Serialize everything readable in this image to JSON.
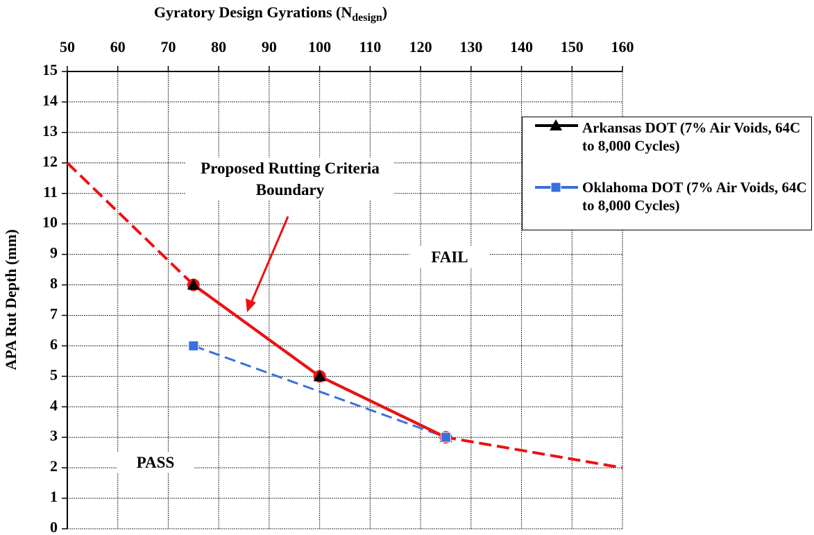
{
  "chart_data": {
    "type": "line",
    "xlabel": {
      "main": "Gyratory Design Gyrations (N",
      "sub": "design",
      "end": ")"
    },
    "ylabel": "APA Rut Depth (mm)",
    "xlim": [
      50,
      160
    ],
    "xticks": [
      50,
      60,
      70,
      80,
      90,
      100,
      110,
      120,
      130,
      140,
      150,
      160
    ],
    "ylim": [
      0,
      15
    ],
    "yticks": [
      0,
      1,
      2,
      3,
      4,
      5,
      6,
      7,
      8,
      9,
      10,
      11,
      12,
      13,
      14,
      15
    ],
    "grid": true,
    "series": [
      {
        "name": "Arkansas DOT (7% Air Voids, 64C to 8,000 Cycles)",
        "color": "#000000",
        "marker": "triangle",
        "x": [
          75,
          100,
          125
        ],
        "values": [
          8,
          5,
          3
        ]
      },
      {
        "name": "Oklahoma DOT (7% Air Voids, 64C to 8,000 Cycles)",
        "color": "#3a6fe0",
        "marker": "square",
        "dashed": true,
        "x": [
          75,
          125
        ],
        "values": [
          6,
          3
        ]
      }
    ],
    "boundary": {
      "color": "#ee1111",
      "x": [
        50,
        75,
        100,
        125,
        160
      ],
      "values": [
        12,
        8,
        5,
        3,
        2
      ]
    },
    "annotations": [
      "Proposed Rutting Criteria Boundary",
      "FAIL",
      "PASS"
    ]
  }
}
